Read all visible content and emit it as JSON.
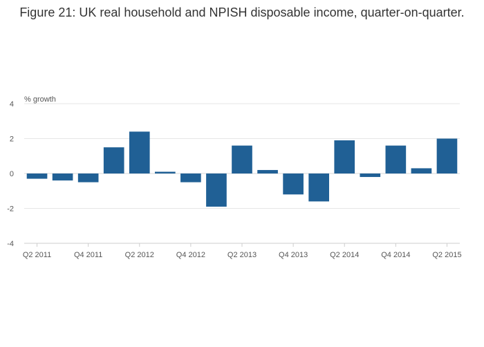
{
  "chart_data": {
    "type": "bar",
    "title": "Figure 21: UK real household and NPISH disposable income, quarter-on-quarter.",
    "ylabel": "% growth",
    "xlabel": "",
    "ylim": [
      -4,
      4
    ],
    "yticks": [
      4,
      2,
      0,
      -2,
      -4
    ],
    "grid": true,
    "bar_color": "#206095",
    "categories": [
      "Q2 2011",
      "Q3 2011",
      "Q4 2011",
      "Q1 2012",
      "Q2 2012",
      "Q3 2012",
      "Q4 2012",
      "Q1 2013",
      "Q2 2013",
      "Q3 2013",
      "Q4 2013",
      "Q1 2014",
      "Q2 2014",
      "Q3 2014",
      "Q4 2014",
      "Q1 2015",
      "Q2 2015"
    ],
    "x_tick_labels": [
      "Q2 2011",
      "Q4 2011",
      "Q2 2012",
      "Q4 2012",
      "Q2 2013",
      "Q4 2013",
      "Q2 2014",
      "Q4 2014",
      "Q2 2015"
    ],
    "values": [
      -0.3,
      -0.4,
      -0.5,
      1.5,
      2.4,
      0.1,
      -0.5,
      -1.9,
      1.6,
      0.2,
      -1.2,
      -1.6,
      1.9,
      -0.2,
      1.6,
      0.3,
      2.0
    ]
  }
}
